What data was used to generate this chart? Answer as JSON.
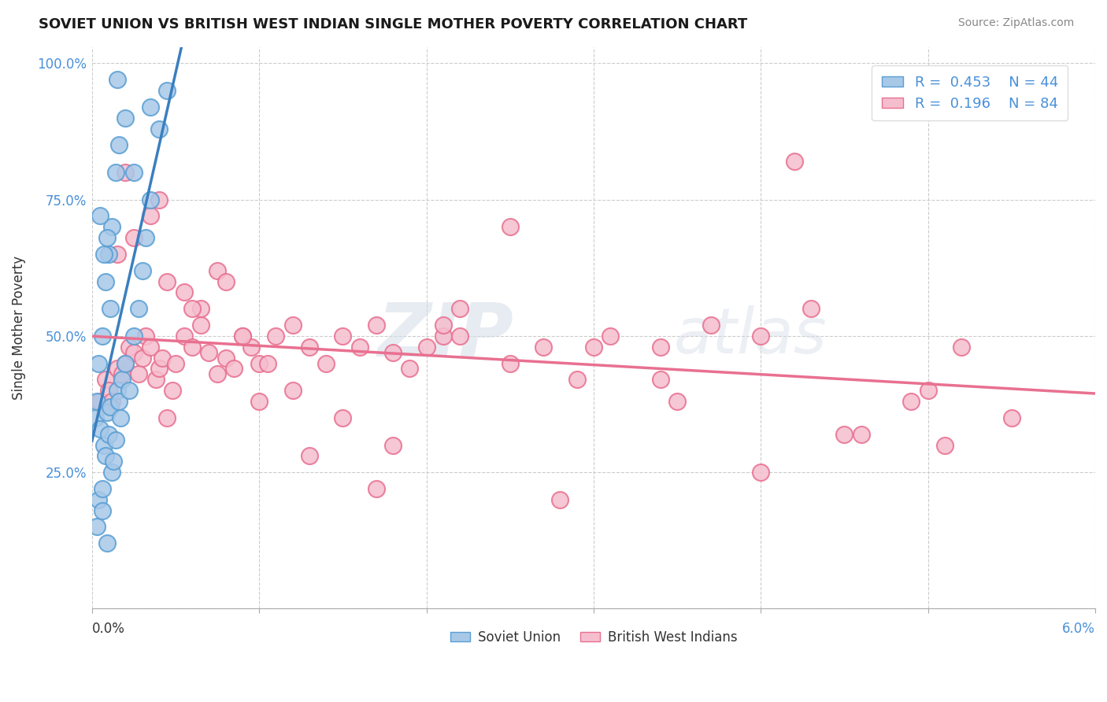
{
  "title": "SOVIET UNION VS BRITISH WEST INDIAN SINGLE MOTHER POVERTY CORRELATION CHART",
  "source": "Source: ZipAtlas.com",
  "ylabel": "Single Mother Poverty",
  "xmin": 0.0,
  "xmax": 6.0,
  "ymin": 0.0,
  "ymax": 100.0,
  "color_soviet": "#a8c8e8",
  "color_soviet_edge": "#5a9fd4",
  "color_bwi": "#f5bece",
  "color_bwi_edge": "#e87090",
  "color_soviet_line": "#3a7fbf",
  "color_bwi_line": "#e87090",
  "watermark_zip": "ZIP",
  "watermark_atlas": "atlas",
  "r_soviet": 0.453,
  "n_soviet": 44,
  "r_bwi": 0.196,
  "n_bwi": 84,
  "soviet_x": [
    0.02,
    0.03,
    0.04,
    0.05,
    0.06,
    0.07,
    0.08,
    0.09,
    0.1,
    0.11,
    0.12,
    0.13,
    0.14,
    0.15,
    0.16,
    0.17,
    0.18,
    0.2,
    0.22,
    0.25,
    0.28,
    0.3,
    0.32,
    0.35,
    0.04,
    0.06,
    0.08,
    0.1,
    0.12,
    0.14,
    0.16,
    0.2,
    0.05,
    0.07,
    0.09,
    0.11,
    0.25,
    0.35,
    0.4,
    0.45,
    0.03,
    0.06,
    0.09,
    0.15
  ],
  "soviet_y": [
    35,
    38,
    20,
    33,
    22,
    30,
    28,
    36,
    32,
    37,
    25,
    27,
    31,
    40,
    38,
    35,
    42,
    45,
    40,
    50,
    55,
    62,
    68,
    75,
    45,
    50,
    60,
    65,
    70,
    80,
    85,
    90,
    72,
    65,
    68,
    55,
    80,
    92,
    88,
    95,
    15,
    18,
    12,
    97
  ],
  "bwi_x": [
    0.05,
    0.08,
    0.1,
    0.12,
    0.15,
    0.18,
    0.2,
    0.22,
    0.25,
    0.28,
    0.3,
    0.32,
    0.35,
    0.38,
    0.4,
    0.42,
    0.45,
    0.48,
    0.5,
    0.55,
    0.6,
    0.65,
    0.7,
    0.75,
    0.8,
    0.85,
    0.9,
    0.95,
    1.0,
    1.1,
    1.2,
    1.3,
    1.4,
    1.5,
    1.6,
    1.7,
    1.8,
    1.9,
    2.0,
    2.1,
    2.2,
    2.5,
    2.7,
    2.9,
    3.1,
    3.4,
    3.7,
    4.0,
    4.3,
    4.6,
    4.9,
    5.2,
    0.15,
    0.25,
    0.35,
    0.45,
    0.55,
    0.65,
    0.75,
    0.9,
    1.05,
    1.2,
    1.5,
    1.8,
    2.1,
    2.5,
    3.0,
    3.5,
    4.0,
    4.5,
    5.0,
    5.5,
    0.2,
    0.4,
    0.6,
    0.8,
    1.0,
    1.3,
    1.7,
    2.2,
    2.8,
    3.4,
    4.2,
    5.1
  ],
  "bwi_y": [
    38,
    42,
    40,
    38,
    44,
    43,
    45,
    48,
    47,
    43,
    46,
    50,
    48,
    42,
    44,
    46,
    35,
    40,
    45,
    50,
    48,
    52,
    47,
    43,
    46,
    44,
    50,
    48,
    45,
    50,
    52,
    48,
    45,
    50,
    48,
    52,
    47,
    44,
    48,
    50,
    55,
    45,
    48,
    42,
    50,
    48,
    52,
    50,
    55,
    32,
    38,
    48,
    65,
    68,
    72,
    60,
    58,
    55,
    62,
    50,
    45,
    40,
    35,
    30,
    52,
    70,
    48,
    38,
    25,
    32,
    40,
    35,
    80,
    75,
    55,
    60,
    38,
    28,
    22,
    50,
    20,
    42,
    82,
    30
  ]
}
